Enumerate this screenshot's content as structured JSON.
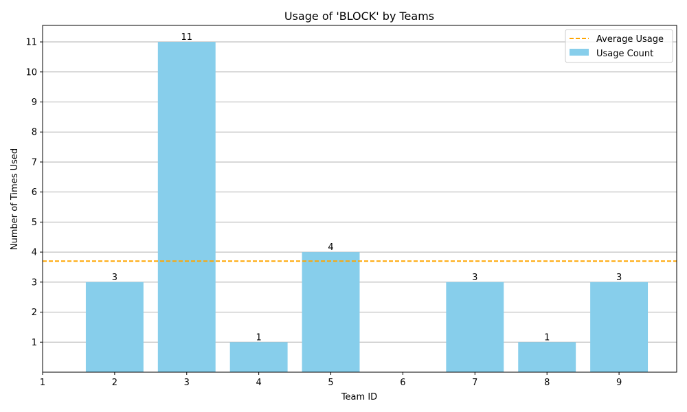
{
  "chart_data": {
    "type": "bar",
    "title": "Usage of 'BLOCK' by Teams",
    "xlabel": "Team ID",
    "ylabel": "Number of Times Used",
    "categories": [
      1,
      2,
      3,
      4,
      5,
      6,
      7,
      8,
      9
    ],
    "values": [
      0,
      3,
      11,
      1,
      4,
      0,
      3,
      1,
      3
    ],
    "bar_labels": [
      "",
      "3",
      "11",
      "1",
      "4",
      "",
      "3",
      "1",
      "3"
    ],
    "x_ticks": [
      "1",
      "2",
      "3",
      "4",
      "5",
      "6",
      "7",
      "8",
      "9"
    ],
    "y_ticks": [
      "1",
      "2",
      "3",
      "4",
      "5",
      "6",
      "7",
      "8",
      "9",
      "10",
      "11"
    ],
    "xlim": [
      1,
      9.8
    ],
    "ylim": [
      0,
      11.55
    ],
    "average": 3.7,
    "grid": "horizontal",
    "legend_position": "top-right",
    "legend": {
      "average_label": "Average Usage",
      "bar_label": "Usage Count"
    },
    "colors": {
      "bar": "#87ceeb",
      "average_line": "#ffa500",
      "grid": "#b0b0b0"
    }
  }
}
